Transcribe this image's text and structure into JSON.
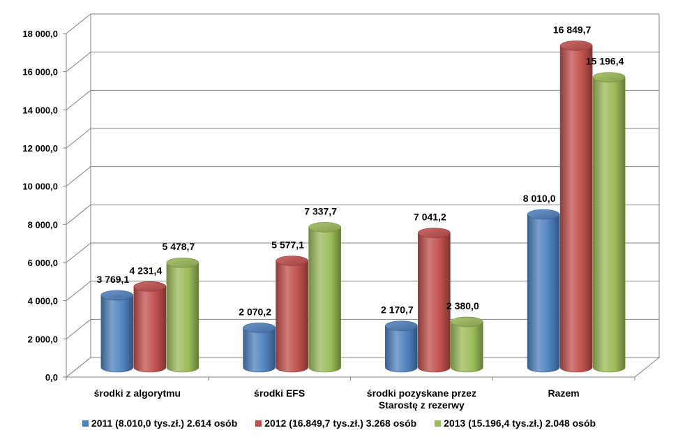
{
  "chart_data": {
    "type": "bar",
    "categories": [
      [
        "środki z algorytmu"
      ],
      [
        "środki EFS"
      ],
      [
        "środki pozyskane przez",
        "Starostę z rezerwy"
      ],
      [
        "Razem"
      ]
    ],
    "series": [
      {
        "name": "2011 (8.010,0 tys.zł.) 2.614 osób",
        "color": "#4f81bd",
        "values": [
          3769.1,
          2070.2,
          2170.7,
          8010.0
        ],
        "labels": [
          "3 769,1",
          "2 070,2",
          "2 170,7",
          "8 010,0"
        ]
      },
      {
        "name": "2012 (16.849,7 tys.zł.) 3.268 osób",
        "color": "#c0504d",
        "values": [
          4231.4,
          5577.1,
          7041.2,
          16849.7
        ],
        "labels": [
          "4 231,4",
          "5 577,1",
          "7 041,2",
          "16 849,7"
        ]
      },
      {
        "name": "2013 (15.196,4 tys.zł.) 2.048 osób",
        "color": "#9bbb59",
        "values": [
          5478.7,
          7337.7,
          2380.0,
          15196.4
        ],
        "labels": [
          "5 478,7",
          "7 337,7",
          "2 380,0",
          "15 196,4"
        ]
      }
    ],
    "ylim": [
      0,
      18000
    ],
    "yticks": [
      0,
      2000,
      4000,
      6000,
      8000,
      10000,
      12000,
      14000,
      16000,
      18000
    ],
    "ytick_labels": [
      "0,0",
      "2 000,0",
      "4 000,0",
      "6 000,0",
      "8 000,0",
      "10 000,0",
      "12 000,0",
      "14 000,0",
      "16 000,0",
      "18 000,0"
    ],
    "grid": true,
    "legend_position": "bottom",
    "style": "3d-cylinder"
  }
}
